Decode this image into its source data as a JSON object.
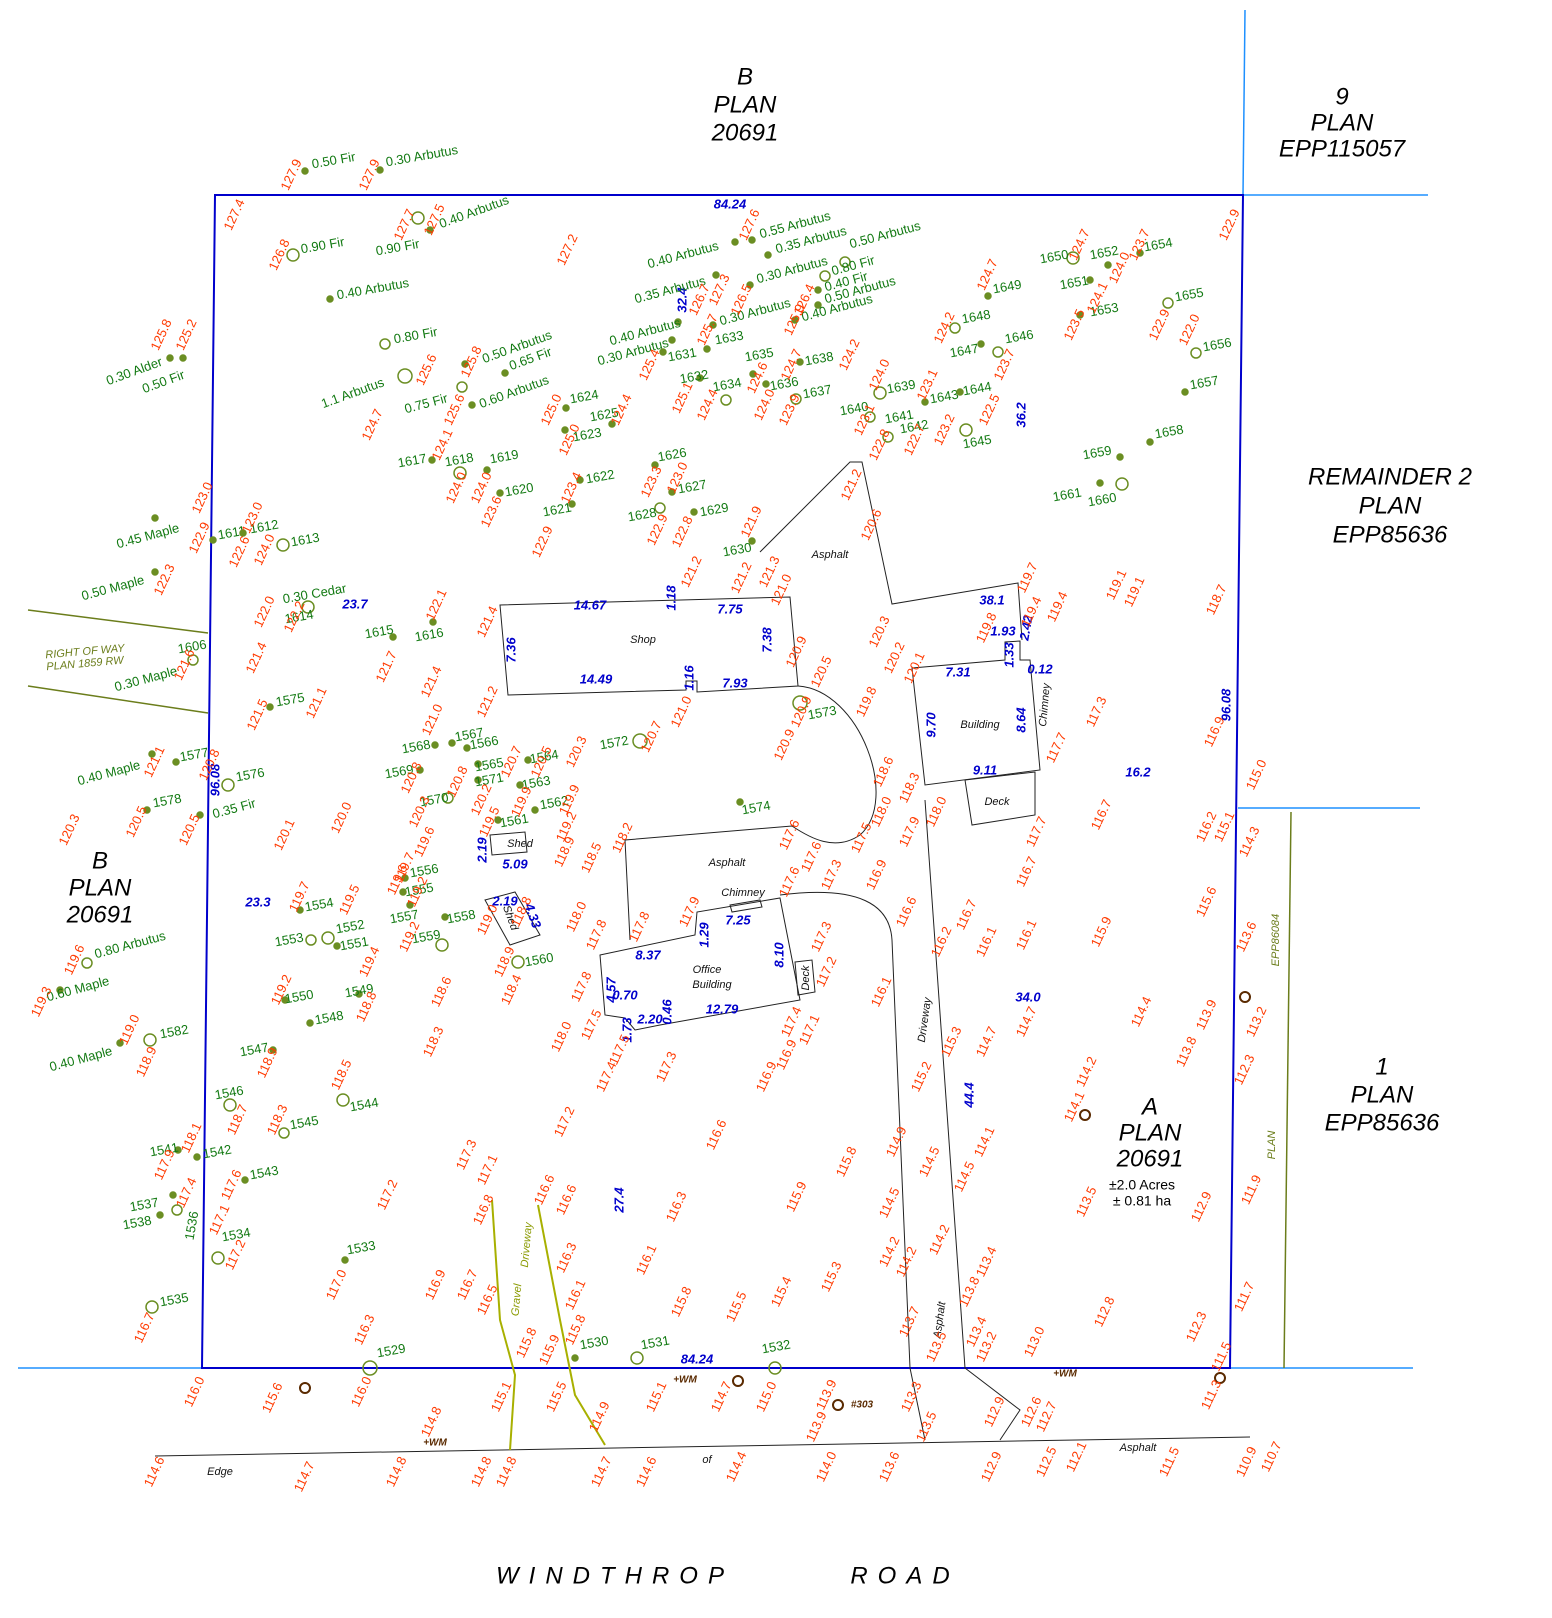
{
  "parcels": [
    {
      "lines": [
        "B",
        "PLAN",
        "20691"
      ]
    },
    {
      "lines": [
        "9",
        "PLAN",
        "EPP115057"
      ]
    },
    {
      "lines": [
        "REMAINDER 2",
        "PLAN",
        "EPP85636"
      ]
    },
    {
      "lines": [
        "B",
        "PLAN",
        "20691"
      ]
    },
    {
      "lines": [
        "A",
        "PLAN",
        "20691"
      ]
    },
    {
      "lines": [
        "±2.0 Acres",
        "± 0.81 ha"
      ]
    },
    {
      "lines": [
        "1",
        "PLAN",
        "EPP85636"
      ]
    },
    {
      "lines": [
        "RIGHT OF WAY",
        "PLAN 1859 RW"
      ]
    },
    {
      "lines": [
        "EPP86084"
      ]
    },
    {
      "lines": [
        "PLAN"
      ]
    }
  ],
  "road_name": [
    "WINDTHROP",
    "ROAD"
  ],
  "labels": [
    "Shop",
    "Asphalt",
    "Building",
    "Chimney",
    "Deck",
    "Shed",
    "Shed",
    "Asphalt",
    "Chimney",
    "Office",
    "Building",
    "Deck",
    "Driveway",
    "Asphalt",
    "Gravel",
    "Driveway",
    "Asphalt",
    "Edge",
    "of"
  ],
  "dimensions": [
    "84.24",
    "84.24",
    "96.08",
    "96.08",
    "36.2",
    "32.4",
    "23.7",
    "23.3",
    "16.2",
    "34.0",
    "44.4",
    "27.4",
    "14.67",
    "7.75",
    "1.18",
    "7.36",
    "7.38",
    "14.49",
    "1.16",
    "7.93",
    "38.1",
    "1.93",
    "2.42",
    "1.33",
    "7.31",
    "0.12",
    "9.70",
    "8.64",
    "9.11",
    "2.19",
    "5.09",
    "2.19",
    "4.33",
    "7.25",
    "1.29",
    "8.37",
    "8.10",
    "4.57",
    "0.70",
    "1.73",
    "2.20",
    "0.46",
    "12.79"
  ],
  "utilities": [
    "+WM",
    "+WM",
    "+WM",
    "#303"
  ],
  "trees": [
    "0.50 Fir",
    "0.30 Arbutus",
    "0.90 Fir",
    "0.90 Fir",
    "0.40 Arbutus",
    "0.40 Arbutus",
    "0.80 Fir",
    "1.1 Arbutus",
    "0.75 Fir",
    "0.50 Arbutus",
    "0.65 Fir",
    "0.60 Arbutus",
    "0.30 Alder",
    "0.50 Fir",
    "0.45 Maple",
    "0.50 Maple",
    "0.30 Maple",
    "0.30 Cedar",
    "0.40 Maple",
    "0.35 Fir",
    "0.80 Arbutus",
    "0.60 Maple",
    "0.40 Maple",
    "0.40 Arbutus",
    "0.35 Arbutus",
    "0.55 Arbutus",
    "0.35 Arbutus",
    "0.30 Arbutus",
    "0.50 Arbutus",
    "0.80 Fir",
    "0.40 Fir",
    "0.50 Arbutus",
    "0.30 Arbutus",
    "0.40 Arbutus",
    "0.40 Arbutus",
    "0.30 Arbutus",
    "1606",
    "1611",
    "1612",
    "1613",
    "1614",
    "1615",
    "1616",
    "1617",
    "1618",
    "1619",
    "1620",
    "1621",
    "1622",
    "1623",
    "1624",
    "1625",
    "1626",
    "1627",
    "1628",
    "1629",
    "1630",
    "1631",
    "1632",
    "1633",
    "1634",
    "1635",
    "1636",
    "1637",
    "1638",
    "1639",
    "1640",
    "1641",
    "1642",
    "1643",
    "1644",
    "1645",
    "1646",
    "1647",
    "1648",
    "1649",
    "1650",
    "1651",
    "1652",
    "1653",
    "1654",
    "1655",
    "1656",
    "1657",
    "1658",
    "1659",
    "1660",
    "1661",
    "1575",
    "1577",
    "1576",
    "1578",
    "1572",
    "1573",
    "1574",
    "1568",
    "1567",
    "1566",
    "1565",
    "1564",
    "1563",
    "1562",
    "1561",
    "1569",
    "1570",
    "1571",
    "1549",
    "1550",
    "1551",
    "1552",
    "1553",
    "1554",
    "1555",
    "1556",
    "1557",
    "1558",
    "1559",
    "1560",
    "1529",
    "1530",
    "1531",
    "1532",
    "1533",
    "1534",
    "1535",
    "1536",
    "1537",
    "1538",
    "1541",
    "1542",
    "1543",
    "1544",
    "1545",
    "1546",
    "1547",
    "1548",
    "1582"
  ],
  "elevations": [
    "127.4",
    "127.9",
    "127.9",
    "126.8",
    "127.7",
    "127.5",
    "127.2",
    "127.6",
    "126.7",
    "127.3",
    "126.5",
    "126.4",
    "125.9",
    "125.7",
    "122.9",
    "124.7",
    "123.7",
    "124.0",
    "124.1",
    "123.5",
    "122.9",
    "122.0",
    "124.7",
    "124.2",
    "123.7",
    "123.1",
    "122.5",
    "122.7",
    "123.2",
    "122.8",
    "123.1",
    "124.0",
    "124.2",
    "123.9",
    "124.0",
    "124.7",
    "124.6",
    "124.4",
    "125.1",
    "125.4",
    "125.0",
    "125.0",
    "124.4",
    "124.7",
    "125.6",
    "125.8",
    "125.6",
    "124.1",
    "124.0",
    "124.0",
    "123.6",
    "123.4",
    "122.9",
    "123.3",
    "123.0",
    "122.9",
    "122.8",
    "121.9",
    "121.2",
    "121.2",
    "121.3",
    "121.0",
    "121.2",
    "120.6",
    "125.8",
    "125.2",
    "123.0",
    "122.9",
    "123.0",
    "122.3",
    "122.6",
    "124.0",
    "122.0",
    "122.2",
    "121.6",
    "121.4",
    "121.5",
    "121.1",
    "122.1",
    "121.7",
    "121.4",
    "121.4",
    "121.2",
    "121.0",
    "120.8",
    "120.3",
    "120.8",
    "120.2",
    "120.7",
    "120.5",
    "119.9",
    "119.5",
    "119.9",
    "120.3",
    "119.2",
    "120.7",
    "121.0",
    "120.9",
    "120.5",
    "120.9",
    "120.9",
    "120.3",
    "120.2",
    "120.1",
    "119.8",
    "118.6",
    "118.0",
    "117.5",
    "116.9",
    "117.9",
    "118.3",
    "118.0",
    "119.8",
    "119.7",
    "119.4",
    "119.4",
    "119.1",
    "119.1",
    "118.7",
    "117.3",
    "117.7",
    "116.9",
    "115.0",
    "116.7",
    "117.7",
    "116.7",
    "116.2",
    "115.1",
    "114.3",
    "115.6",
    "115.9",
    "116.1",
    "116.1",
    "116.2",
    "116.7",
    "116.6",
    "120.3",
    "120.5",
    "120.5",
    "120.1",
    "120.0",
    "121.1",
    "120.8",
    "119.6",
    "119.7",
    "119.6",
    "119.2",
    "119.2",
    "119.0",
    "118.9",
    "118.5",
    "118.2",
    "117.6",
    "117.6",
    "117.3",
    "117.6",
    "119.7",
    "119.5",
    "119.6",
    "119.3",
    "119.0",
    "118.9",
    "119.2",
    "119.4",
    "118.8",
    "118.6",
    "118.3",
    "118.9",
    "118.5",
    "118.3",
    "118.7",
    "118.1",
    "117.9",
    "117.6",
    "117.4",
    "117.1",
    "117.2",
    "116.7",
    "117.2",
    "117.0",
    "116.3",
    "116.9",
    "116.7",
    "116.5",
    "117.3",
    "117.1",
    "116.8",
    "116.6",
    "116.6",
    "116.3",
    "116.1",
    "115.8",
    "115.8",
    "115.9",
    "117.2",
    "116.6",
    "115.8",
    "115.9",
    "116.3",
    "116.1",
    "115.8",
    "115.5",
    "115.4",
    "115.3",
    "114.9",
    "114.5",
    "114.5",
    "114.5",
    "114.1",
    "114.2",
    "114.2",
    "114.2",
    "113.4",
    "113.8",
    "113.7",
    "113.5",
    "113.4",
    "113.2",
    "113.0",
    "112.8",
    "112.3",
    "111.5",
    "111.7",
    "112.9",
    "111.9",
    "113.5",
    "114.4",
    "113.9",
    "113.8",
    "113.2",
    "112.3",
    "113.6",
    "114.1",
    "114.2",
    "114.7",
    "114.7",
    "115.3",
    "115.2",
    "116.1",
    "117.2",
    "117.3",
    "117.4",
    "117.1",
    "116.9",
    "116.9",
    "117.3",
    "117.5",
    "117.4",
    "117.5",
    "118.0",
    "117.8",
    "117.8",
    "118.0",
    "117.8",
    "117.9",
    "118.8",
    "118.4",
    "118.9",
    "116.0",
    "115.6",
    "116.0",
    "114.8",
    "115.1",
    "115.5",
    "114.9",
    "115.1",
    "114.7",
    "115.0",
    "113.9",
    "113.9",
    "113.3",
    "113.5",
    "112.9",
    "112.6",
    "112.7",
    "111.3",
    "110.7",
    "110.9",
    "111.5",
    "112.1",
    "112.5",
    "112.9",
    "113.6",
    "114.0",
    "114.4",
    "114.6",
    "114.7",
    "114.8",
    "114.8",
    "114.8",
    "114.7",
    "114.6"
  ]
}
